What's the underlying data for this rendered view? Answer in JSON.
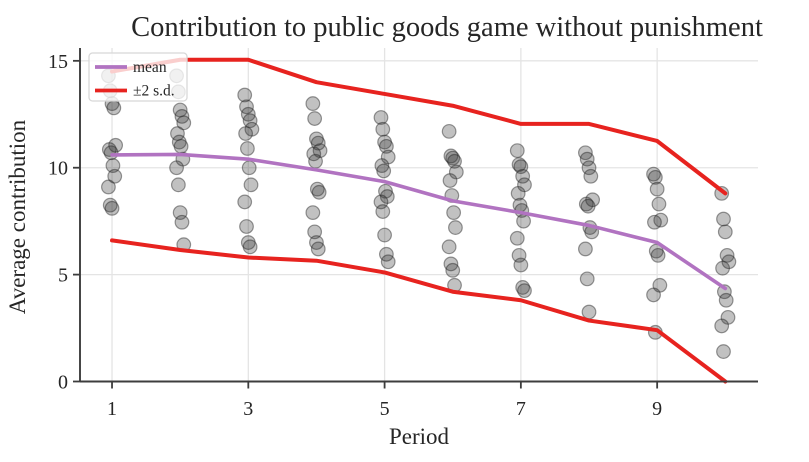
{
  "figure": {
    "title": "Contribution to public goods game without punishment"
  },
  "chart_data": {
    "type": "line+scatter",
    "title": "Contribution to public goods game without punishment",
    "xlabel": "Period",
    "ylabel": "Average contribution",
    "xlim": [
      0.53,
      10.48
    ],
    "ylim": [
      0,
      15.6
    ],
    "xticks": [
      1,
      3,
      5,
      7,
      9
    ],
    "yticks": [
      0,
      5,
      10,
      15
    ],
    "grid": true,
    "legend": {
      "position": "upper-left",
      "entries": [
        {
          "label": "mean",
          "color": "#b173c1"
        },
        {
          "label": "±2 s.d.",
          "color": "#e7231f"
        }
      ]
    },
    "x": [
      1,
      2,
      3,
      4,
      5,
      6,
      7,
      8,
      9,
      10
    ],
    "series": [
      {
        "name": "mean",
        "type": "line",
        "color": "#b173c1",
        "width": 3.6,
        "values": [
          10.6,
          10.62,
          10.4,
          9.9,
          9.35,
          8.45,
          7.9,
          7.3,
          6.5,
          4.35
        ]
      },
      {
        "name": "+2 s.d.",
        "type": "line",
        "color": "#e7231f",
        "width": 4,
        "values": [
          14.5,
          15.05,
          15.05,
          14.0,
          13.45,
          12.9,
          12.05,
          12.05,
          11.25,
          8.8
        ]
      },
      {
        "name": "-2 s.d.",
        "type": "line",
        "color": "#e7231f",
        "width": 4,
        "values": [
          6.6,
          6.15,
          5.8,
          5.65,
          5.1,
          4.2,
          3.8,
          2.85,
          2.4,
          0.0
        ]
      }
    ],
    "scatter": {
      "name": "individual group contributions",
      "color": "#333333",
      "fill_opacity": 0.3,
      "edge_color": "#222222",
      "edge_opacity": 0.45,
      "radius": 6.8,
      "points_by_period": [
        [
          14.3,
          13.6,
          13.0,
          12.8,
          11.05,
          10.85,
          10.7,
          10.1,
          9.6,
          9.1,
          8.25,
          8.1
        ],
        [
          14.3,
          13.55,
          12.7,
          12.4,
          12.1,
          11.6,
          11.2,
          11.0,
          10.4,
          10.0,
          9.2,
          7.9,
          7.45,
          6.4
        ],
        [
          13.4,
          12.85,
          12.5,
          12.2,
          11.8,
          11.6,
          10.9,
          10.0,
          9.2,
          8.4,
          7.25,
          6.5,
          6.3
        ],
        [
          13.0,
          12.3,
          11.35,
          11.15,
          10.8,
          10.65,
          10.3,
          9.0,
          8.85,
          7.9,
          7.0,
          6.5,
          6.2
        ],
        [
          12.35,
          11.8,
          11.2,
          11.0,
          10.5,
          10.1,
          9.85,
          8.9,
          8.65,
          8.4,
          7.95,
          6.85,
          5.95,
          5.6
        ],
        [
          11.7,
          10.55,
          10.45,
          10.3,
          9.8,
          9.4,
          8.7,
          7.9,
          7.2,
          6.3,
          5.5,
          5.2,
          4.5
        ],
        [
          10.8,
          10.15,
          10.05,
          9.6,
          9.2,
          8.8,
          8.25,
          8.0,
          7.5,
          6.7,
          5.9,
          5.45,
          4.4,
          4.25
        ],
        [
          10.7,
          10.4,
          10.0,
          9.6,
          8.5,
          8.3,
          8.2,
          7.2,
          7.0,
          6.2,
          4.8,
          3.25
        ],
        [
          9.7,
          9.55,
          9.0,
          8.3,
          7.55,
          7.45,
          6.1,
          5.9,
          4.5,
          4.05,
          2.3
        ],
        [
          8.8,
          7.6,
          7.0,
          5.9,
          5.6,
          5.3,
          4.2,
          3.8,
          3.0,
          2.6,
          1.4
        ]
      ]
    },
    "style": {
      "spine_color": "#3d3d3d",
      "grid_color": "#e4e4e4",
      "background": "#ffffff",
      "legend_fill": "rgba(255,255,255,0.78)",
      "legend_border": "#d8d8d8"
    }
  }
}
